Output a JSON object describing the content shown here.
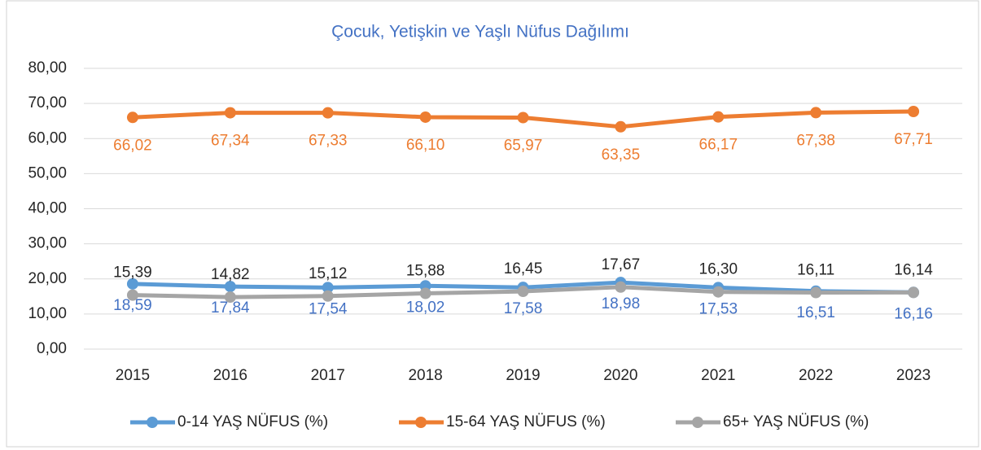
{
  "chart_data": {
    "type": "line",
    "title": "Çocuk, Yetişkin ve Yaşlı Nüfus Dağılımı",
    "categories": [
      "2015",
      "2016",
      "2017",
      "2018",
      "2019",
      "2020",
      "2021",
      "2022",
      "2023"
    ],
    "series": [
      {
        "name": "0-14 YAŞ NÜFUS (%)",
        "color": "#5b9bd5",
        "label_color": "#4472c4",
        "label_position": "below",
        "values": [
          18.59,
          17.84,
          17.54,
          18.02,
          17.58,
          18.98,
          17.53,
          16.51,
          16.16
        ],
        "value_labels": [
          "18,59",
          "17,84",
          "17,54",
          "18,02",
          "17,58",
          "18,98",
          "17,53",
          "16,51",
          "16,16"
        ]
      },
      {
        "name": "15-64 YAŞ NÜFUS (%)",
        "color": "#ed7d31",
        "label_color": "#ed7d31",
        "label_position": "below",
        "values": [
          66.02,
          67.34,
          67.33,
          66.1,
          65.97,
          63.35,
          66.17,
          67.38,
          67.71
        ],
        "value_labels": [
          "66,02",
          "67,34",
          "67,33",
          "66,10",
          "65,97",
          "63,35",
          "66,17",
          "67,38",
          "67,71"
        ]
      },
      {
        "name": "65+ YAŞ NÜFUS (%)",
        "color": "#a5a5a5",
        "label_color": "#262626",
        "label_position": "above",
        "values": [
          15.39,
          14.82,
          15.12,
          15.88,
          16.45,
          17.67,
          16.3,
          16.11,
          16.14
        ],
        "value_labels": [
          "15,39",
          "14,82",
          "15,12",
          "15,88",
          "16,45",
          "17,67",
          "16,30",
          "16,11",
          "16,14"
        ]
      }
    ],
    "ylim": [
      0,
      80
    ],
    "yticks": [
      {
        "value": 0,
        "label": "0,00"
      },
      {
        "value": 10,
        "label": "10,00"
      },
      {
        "value": 20,
        "label": "20,00"
      },
      {
        "value": 30,
        "label": "30,00"
      },
      {
        "value": 40,
        "label": "40,00"
      },
      {
        "value": 50,
        "label": "50,00"
      },
      {
        "value": 60,
        "label": "60,00"
      },
      {
        "value": 70,
        "label": "70,00"
      },
      {
        "value": 80,
        "label": "80,00"
      }
    ],
    "grid": true,
    "legend": "bottom"
  }
}
